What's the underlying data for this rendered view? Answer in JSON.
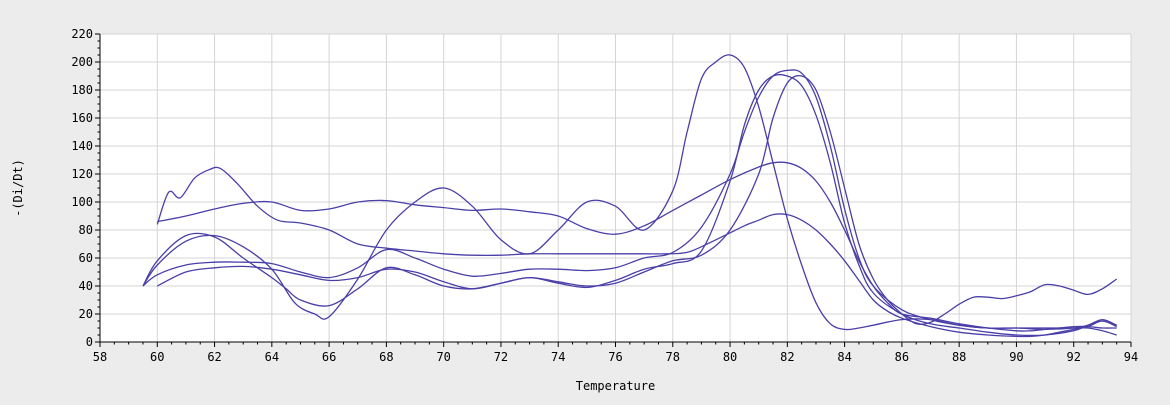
{
  "chart_data": {
    "type": "line",
    "xlabel": "Temperature",
    "ylabel": "-(Di/Dt)",
    "xlim": [
      58,
      94
    ],
    "ylim": [
      0,
      220
    ],
    "x_ticks": [
      58,
      60,
      62,
      64,
      66,
      68,
      70,
      72,
      74,
      76,
      78,
      80,
      82,
      84,
      86,
      88,
      90,
      92,
      94
    ],
    "y_ticks": [
      0,
      20,
      40,
      60,
      80,
      100,
      120,
      140,
      160,
      180,
      200,
      220
    ],
    "grid": true,
    "line_color": "#4a3fa8",
    "background": "#ffffff",
    "series": [
      {
        "x": [
          60,
          60.4,
          60.8,
          61.3,
          61.8,
          62.2,
          62.8,
          63.5,
          64.2,
          65,
          66,
          67,
          68,
          69,
          70,
          71,
          72,
          73,
          74,
          75,
          76,
          77,
          77.8,
          78.5,
          79.2,
          80,
          80.5,
          81,
          81.5,
          82,
          82.5,
          83,
          83.5,
          84,
          84.5,
          85,
          85.5,
          86,
          87,
          88,
          89,
          90,
          90.5,
          91,
          91.5,
          92,
          92.5,
          93,
          93.5
        ],
        "y": [
          84,
          107,
          103,
          117,
          123,
          124,
          113,
          97,
          87,
          85,
          80,
          70,
          67,
          65,
          63,
          62,
          62,
          63,
          63,
          63,
          63,
          63,
          63,
          64,
          70,
          78,
          83,
          87,
          91,
          91,
          87,
          80,
          70,
          58,
          44,
          30,
          22,
          17,
          11,
          7,
          5,
          4,
          4,
          5,
          7,
          9,
          11,
          15,
          11
        ]
      },
      {
        "x": [
          60,
          61,
          62,
          63,
          64,
          65,
          66,
          67,
          68,
          69,
          70,
          71,
          72,
          73,
          74,
          75,
          76,
          77,
          78,
          79,
          80,
          81,
          81.5,
          82,
          82.5,
          83,
          83.5,
          84,
          84.5,
          85,
          85.5,
          86,
          87,
          88,
          89,
          90,
          90.5,
          91,
          92,
          92.5,
          93,
          93.5
        ],
        "y": [
          86,
          90,
          95,
          99,
          100,
          94,
          95,
          100,
          101,
          98,
          96,
          94,
          95,
          93,
          90,
          81,
          77,
          83,
          94,
          105,
          116,
          125,
          128,
          128,
          124,
          115,
          100,
          80,
          58,
          40,
          28,
          20,
          17,
          13,
          10,
          8,
          8,
          9,
          11,
          11,
          10,
          10
        ]
      },
      {
        "x": [
          59.5,
          60,
          61,
          62,
          63,
          64,
          64.8,
          65.5,
          66,
          67,
          68,
          69,
          70,
          71,
          72,
          73,
          74,
          75,
          76,
          77,
          78,
          78.5,
          79,
          79.5,
          80,
          80.5,
          81,
          81.5,
          82,
          82.5,
          83,
          83.5,
          84,
          84.5,
          85,
          86,
          87,
          88,
          89,
          90,
          90.5,
          91,
          92,
          92.5,
          93,
          93.5
        ],
        "y": [
          40,
          55,
          72,
          76,
          68,
          52,
          28,
          20,
          18,
          45,
          80,
          100,
          110,
          97,
          73,
          63,
          80,
          100,
          97,
          80,
          108,
          150,
          188,
          200,
          205,
          196,
          168,
          128,
          88,
          55,
          28,
          13,
          9,
          10,
          12,
          16,
          16,
          12,
          10,
          10,
          10,
          10,
          10,
          10,
          8,
          5
        ]
      },
      {
        "x": [
          59.5,
          60,
          61,
          62,
          63,
          64,
          65,
          66,
          67,
          68,
          69,
          70,
          71,
          72,
          73,
          74,
          75,
          76,
          77,
          78,
          79,
          80,
          80.5,
          81,
          81.5,
          82,
          82.5,
          83,
          83.5,
          84,
          84.5,
          85,
          86,
          87,
          88,
          89,
          90,
          91,
          92,
          92.5,
          93,
          93.5
        ],
        "y": [
          40,
          48,
          55,
          57,
          57,
          56,
          50,
          46,
          53,
          66,
          60,
          52,
          47,
          49,
          52,
          52,
          51,
          53,
          60,
          64,
          82,
          120,
          150,
          175,
          190,
          194,
          192,
          175,
          140,
          95,
          60,
          40,
          23,
          16,
          12,
          10,
          10,
          9,
          10,
          12,
          16,
          12
        ]
      },
      {
        "x": [
          59.5,
          60,
          61,
          62,
          63,
          64,
          64.5,
          65,
          66,
          67,
          68,
          69,
          70,
          71,
          72,
          73,
          74,
          75,
          76,
          77,
          78,
          79,
          80,
          80.5,
          81,
          81.5,
          82,
          82.5,
          83,
          83.5,
          84,
          84.5,
          85,
          86,
          87,
          88,
          89,
          90,
          91,
          92,
          92.5,
          93,
          93.5
        ],
        "y": [
          40,
          58,
          76,
          75,
          60,
          46,
          38,
          30,
          26,
          38,
          53,
          48,
          40,
          38,
          42,
          46,
          42,
          39,
          44,
          52,
          56,
          65,
          115,
          155,
          180,
          190,
          190,
          183,
          162,
          128,
          85,
          55,
          35,
          20,
          13,
          10,
          7,
          5,
          5,
          8,
          12,
          15,
          12
        ]
      },
      {
        "x": [
          60,
          61,
          62,
          63,
          64,
          65,
          66,
          67,
          68,
          69,
          70,
          71,
          72,
          73,
          74,
          75,
          76,
          77,
          78,
          79,
          80,
          81,
          81.5,
          82,
          82.5,
          83,
          83.5,
          84,
          84.5,
          85,
          85.5,
          86,
          86.5,
          87,
          87.5,
          88,
          88.5,
          89,
          89.5,
          90,
          90.5,
          91,
          91.5,
          92,
          92.5,
          93,
          93.5
        ],
        "y": [
          40,
          50,
          53,
          54,
          52,
          48,
          44,
          46,
          52,
          50,
          43,
          38,
          42,
          46,
          43,
          40,
          42,
          50,
          58,
          62,
          80,
          120,
          160,
          185,
          190,
          180,
          150,
          110,
          70,
          45,
          30,
          20,
          13,
          14,
          20,
          27,
          32,
          32,
          31,
          33,
          36,
          41,
          40,
          37,
          34,
          38,
          45
        ]
      }
    ]
  }
}
